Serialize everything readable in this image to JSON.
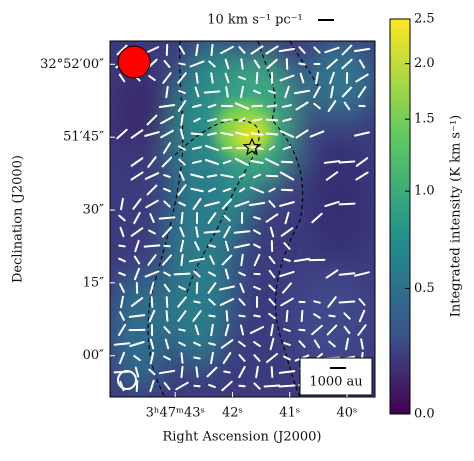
{
  "chart_data": {
    "type": "image",
    "xlabel": "Right Ascension (J2000)",
    "ylabel": "Declination (J2000)",
    "xlim": [
      44.14,
      39.51
    ],
    "xticks": [
      {
        "value": 43,
        "label": "3ʰ47ᵐ43ˢ"
      },
      {
        "value": 42,
        "label": "42ˢ"
      },
      {
        "value": 41,
        "label": "41ˢ"
      },
      {
        "value": 40,
        "label": "40ˢ"
      }
    ],
    "ylim": [
      32.84764,
      32.868
    ],
    "yticks": [
      {
        "value": 32.86667,
        "label": "32°52′00″"
      },
      {
        "value": 32.8625,
        "label": "51′45″"
      },
      {
        "value": 32.858333,
        "label": "30″"
      },
      {
        "value": 32.854167,
        "label": "15″"
      },
      {
        "value": 32.85,
        "label": "00″"
      }
    ],
    "colorbar": {
      "label": "Integrated intensity (K km s⁻¹)",
      "scale": "asinh",
      "lim": [
        0,
        2.5
      ],
      "ticks": [
        {
          "value": 0,
          "label": "0.0"
        },
        0.5,
        {
          "value": 1,
          "label": "1.0"
        },
        1.5,
        {
          "value": 2,
          "label": "2.0"
        },
        2.5
      ]
    },
    "vector_scale_label": "10 km s⁻¹ pc⁻¹",
    "length_scale_label": "1000 au"
  }
}
